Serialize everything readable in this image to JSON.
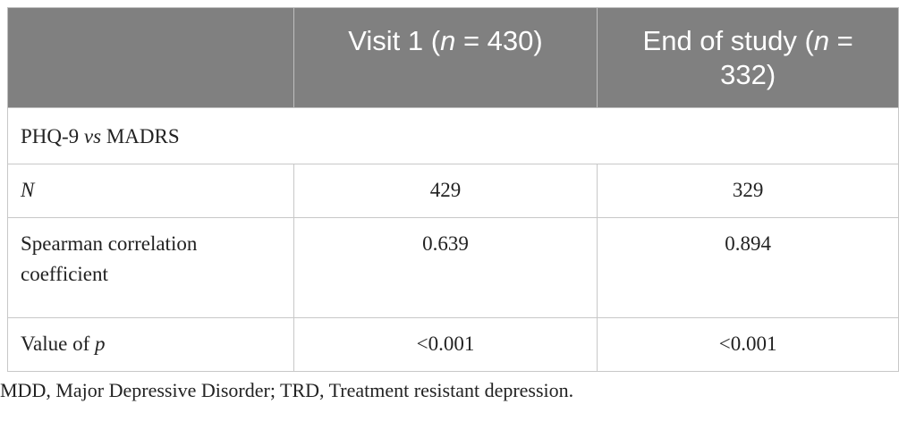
{
  "table": {
    "header": [
      [
        {
          "text": "Visit 1 (",
          "italic": false
        },
        {
          "text": "n",
          "italic": true
        },
        {
          "text": " = 430)",
          "italic": false
        }
      ],
      [
        {
          "text": "End of study (",
          "italic": false
        },
        {
          "text": "n",
          "italic": true
        },
        {
          "text": " = 332)",
          "italic": false
        }
      ]
    ],
    "section": [
      {
        "text": "PHQ-9 ",
        "italic": false
      },
      {
        "text": "vs",
        "italic": true
      },
      {
        "text": " MADRS",
        "italic": false
      }
    ],
    "rows": [
      [
        [
          {
            "text": "N",
            "italic": true
          }
        ],
        [
          {
            "text": "429",
            "italic": false
          }
        ],
        [
          {
            "text": "329",
            "italic": false
          }
        ]
      ],
      [
        [
          {
            "text": "Spearman correlation coefficient",
            "italic": false
          }
        ],
        [
          {
            "text": "0.639",
            "italic": false
          }
        ],
        [
          {
            "text": "0.894",
            "italic": false
          }
        ]
      ],
      [
        [
          {
            "text": "Value of ",
            "italic": false
          },
          {
            "text": "p",
            "italic": true
          }
        ],
        [
          {
            "text": "<0.001",
            "italic": false
          }
        ],
        [
          {
            "text": "<0.001",
            "italic": false
          }
        ]
      ]
    ]
  },
  "footnote": "MDD, Major Depressive Disorder; TRD, Treatment resistant depression."
}
